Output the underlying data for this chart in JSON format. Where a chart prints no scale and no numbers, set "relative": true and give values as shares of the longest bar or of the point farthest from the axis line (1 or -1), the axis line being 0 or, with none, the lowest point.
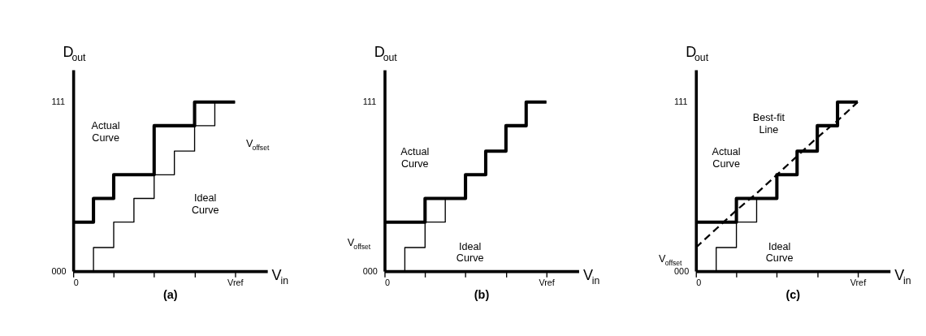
{
  "chart_data": [
    {
      "type": "step",
      "title": "(a)",
      "xlabel": "V$_{in}$",
      "ylabel": "D$_{out}$",
      "relative": true,
      "categories": [
        "0",
        null,
        null,
        null,
        null,
        null,
        null,
        null,
        "Vref"
      ],
      "series": [
        {
          "color": "#000000",
          "values": [
            0,
            0.14,
            0.29,
            0.43,
            0.57,
            0.71,
            0.86,
            1,
            1
          ]
        },
        {
          "color": "#000000",
          "values": [
            0.29,
            0.43,
            0.57,
            0.57,
            0.86,
            0.86,
            1,
            1,
            1
          ]
        }
      ],
      "annotations": [
        "000",
        "111",
        "Actual Curve",
        "Ideal Curve",
        "V$_{offset}$"
      ]
    },
    {
      "type": "step",
      "title": "(b)",
      "xlabel": "V$_{in}$",
      "ylabel": "D$_{out}$",
      "relative": true,
      "categories": [
        "0",
        null,
        null,
        null,
        null,
        null,
        null,
        null,
        "Vref"
      ],
      "series": [
        {
          "color": "#000000",
          "values": [
            0,
            0.14,
            0.29,
            0.43,
            0.57,
            0.71,
            0.86,
            1,
            1
          ]
        },
        {
          "color": "#000000",
          "values": [
            0.29,
            0.29,
            0.43,
            0.43,
            0.57,
            0.71,
            0.86,
            1,
            1
          ]
        }
      ],
      "annotations": [
        "000",
        "111",
        "Actual Curve",
        "Ideal Curve",
        "V$_{offset}$"
      ]
    },
    {
      "type": "step",
      "title": "(c)",
      "xlabel": "V$_{in}$",
      "ylabel": "D$_{out}$",
      "relative": true,
      "categories": [
        "0",
        null,
        null,
        null,
        null,
        null,
        null,
        null,
        "Vref"
      ],
      "series": [
        {
          "color": "#000000",
          "values": [
            0,
            0.14,
            0.29,
            0.43,
            0.57,
            0.71,
            0.86,
            1,
            1
          ]
        },
        {
          "color": "#000000",
          "values": [
            0.29,
            0.29,
            0.43,
            0.43,
            0.57,
            0.71,
            0.86,
            1,
            1
          ]
        },
        {
          "type": "line",
          "color": "#000000",
          "line_style": "dashed",
          "values": [
            0.14,
            0.25,
            0.36,
            0.46,
            0.57,
            0.68,
            0.79,
            0.89,
            1
          ]
        }
      ],
      "annotations": [
        "000",
        "111",
        "Actual Curve",
        "Best-fit Line",
        "Ideal Curve",
        "V$_{offset}$"
      ]
    }
  ]
}
